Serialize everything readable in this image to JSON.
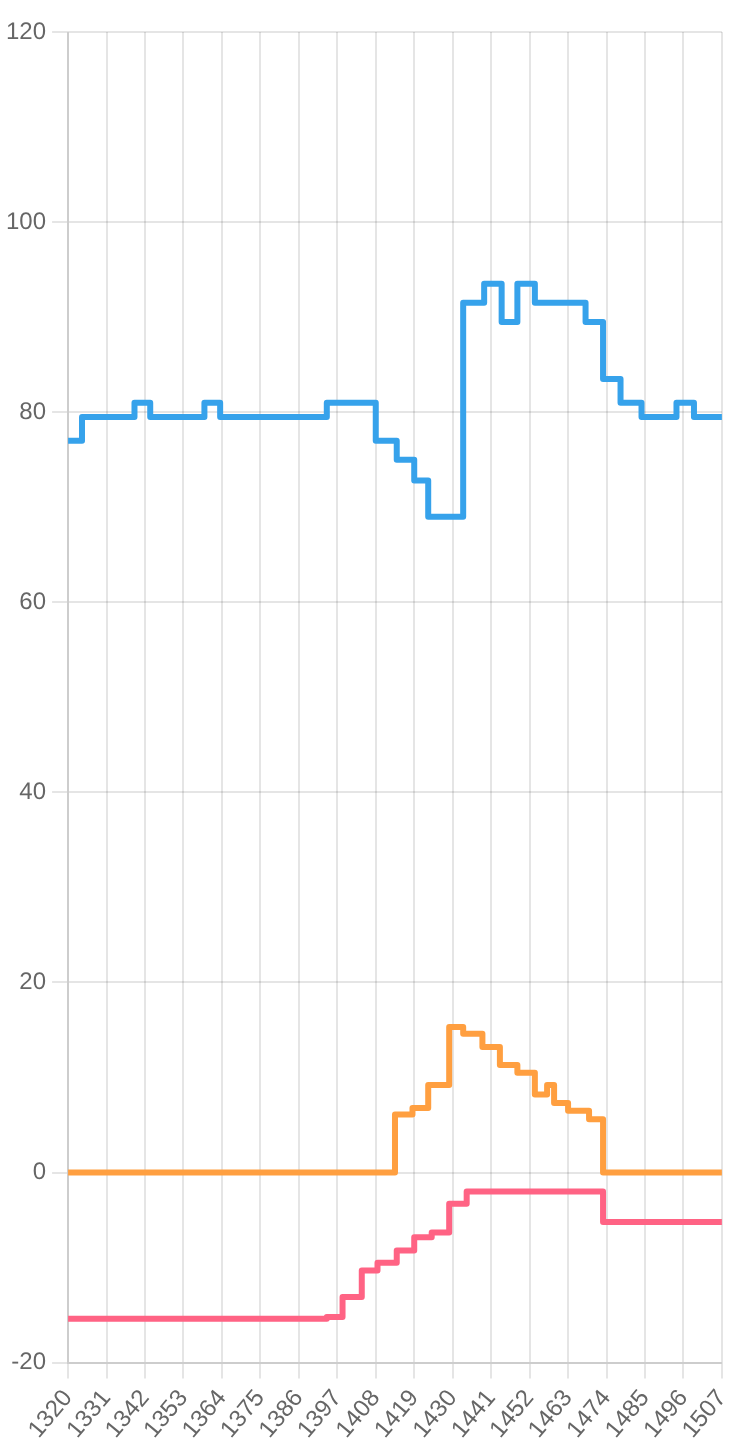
{
  "chart_data": {
    "type": "step",
    "xlim": [
      1320,
      1507
    ],
    "xticks": [
      1320,
      1331,
      1342,
      1353,
      1364,
      1375,
      1386,
      1397,
      1408,
      1419,
      1430,
      1441,
      1452,
      1463,
      1474,
      1485,
      1496,
      1507
    ],
    "ylim": [
      -20,
      120
    ],
    "yticks": [
      -20,
      0,
      20,
      40,
      60,
      80,
      100,
      120
    ],
    "grid": true,
    "marker": "none",
    "series": [
      {
        "color": "#36a2eb",
        "x": [
          1320,
          1324,
          1339,
          1343.5,
          1359,
          1363.5,
          1394,
          1408,
          1414,
          1419,
          1423,
          1433,
          1439,
          1444,
          1448.5,
          1453.5,
          1468,
          1473,
          1478,
          1484,
          1494,
          1499,
          1507
        ],
        "values": [
          77,
          79.5,
          81,
          79.5,
          81,
          79.5,
          81,
          77,
          75,
          72.8,
          69,
          91.5,
          93.5,
          89.5,
          93.5,
          91.5,
          89.5,
          83.5,
          81,
          79.5,
          81,
          79.5,
          79.5
        ]
      },
      {
        "color": "#ff9f40",
        "x": [
          1320,
          1413.5,
          1418.5,
          1423,
          1429,
          1433,
          1438.5,
          1443.5,
          1448.5,
          1453.5,
          1457,
          1459,
          1463,
          1469,
          1473,
          1507
        ],
        "values": [
          0,
          6.1,
          6.8,
          9.2,
          15.3,
          14.6,
          13.2,
          11.3,
          10.5,
          8.2,
          9.2,
          7.3,
          6.5,
          5.6,
          0,
          0
        ]
      },
      {
        "color": "#ff6384",
        "x": [
          1320,
          1394,
          1398.5,
          1404,
          1408.5,
          1414,
          1419,
          1424,
          1429,
          1434,
          1473,
          1507
        ],
        "values": [
          -15.4,
          -15.2,
          -13.1,
          -10.3,
          -9.5,
          -8.2,
          -6.8,
          -6.3,
          -3.3,
          -2,
          -5.2,
          -5.2
        ]
      }
    ]
  }
}
